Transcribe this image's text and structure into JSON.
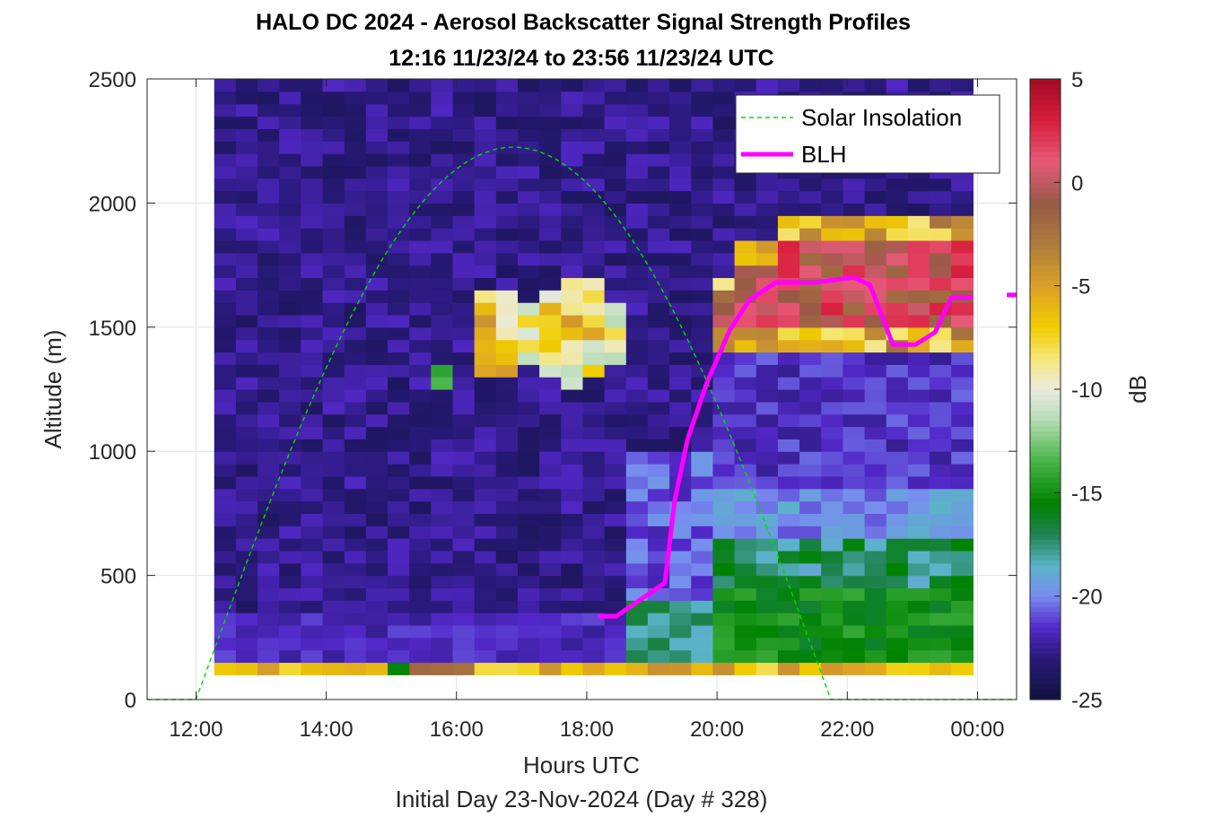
{
  "title_line1": "HALO DC 2024 - Aerosol Backscatter Signal Strength Profiles",
  "title_line2": "12:16 11/23/24 to 23:56 11/23/24  UTC",
  "chart_data": {
    "type": "heatmap",
    "title": "HALO DC 2024 - Aerosol Backscatter Signal Strength Profiles",
    "subtitle": "12:16 11/23/24 to 23:56 11/23/24  UTC",
    "xlabel": "Hours UTC",
    "xlabel2": "Initial Day 23-Nov-2024 (Day # 328)",
    "ylabel": "Altitude (m)",
    "colorbar_label": "dB",
    "xlim_hours": [
      11.25,
      24.6
    ],
    "ylim": [
      0,
      2500
    ],
    "x_ticks": [
      {
        "value": 12,
        "label": "12:00"
      },
      {
        "value": 14,
        "label": "14:00"
      },
      {
        "value": 16,
        "label": "16:00"
      },
      {
        "value": 18,
        "label": "18:00"
      },
      {
        "value": 20,
        "label": "20:00"
      },
      {
        "value": 22,
        "label": "22:00"
      },
      {
        "value": 24,
        "label": "00:00"
      }
    ],
    "y_ticks": [
      0,
      500,
      1000,
      1500,
      2000,
      2500
    ],
    "clim": [
      -25,
      5
    ],
    "colorbar_ticks": [
      5,
      0,
      -5,
      -10,
      -15,
      -20,
      -25
    ],
    "grid": true,
    "legend_position": "top-right",
    "legend": [
      {
        "label": "Solar Insolation",
        "color": "#00dd00",
        "style": "dashed"
      },
      {
        "label": "BLH",
        "color": "#ff00ff",
        "style": "solid"
      }
    ],
    "heatmap": {
      "x_start_hour": 12.28,
      "x_end_hour": 23.93,
      "bin_height_m": 50,
      "num_columns": 35,
      "description": "Signal strength in dB by time column and altitude bin"
    },
    "solar_insolation": {
      "rise_hour": 12.0,
      "set_hour": 21.75,
      "peak_hour": 16.95,
      "peak_altitude_equiv_m": 2225,
      "color": "#00dd00"
    },
    "blh": {
      "name": "BLH",
      "color": "#ff00ff",
      "points": [
        [
          18.2,
          335
        ],
        [
          18.45,
          335
        ],
        [
          19.2,
          470
        ],
        [
          19.35,
          800
        ],
        [
          19.55,
          1050
        ],
        [
          19.85,
          1280
        ],
        [
          20.2,
          1490
        ],
        [
          20.5,
          1610
        ],
        [
          20.9,
          1680
        ],
        [
          21.5,
          1680
        ],
        [
          22.1,
          1700
        ],
        [
          22.35,
          1670
        ],
        [
          22.7,
          1430
        ],
        [
          23.05,
          1430
        ],
        [
          23.35,
          1480
        ],
        [
          23.6,
          1620
        ],
        [
          23.9,
          1620
        ]
      ],
      "tail": [
        [
          24.45,
          1630
        ],
        [
          24.6,
          1630
        ]
      ]
    }
  }
}
